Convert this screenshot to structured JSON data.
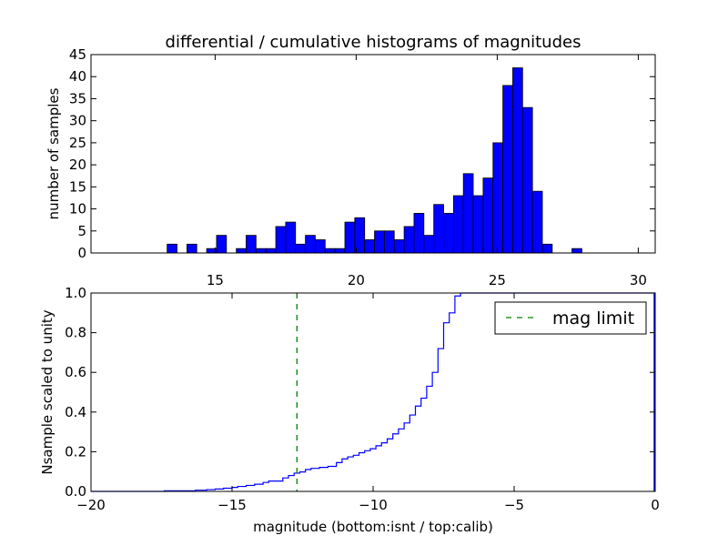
{
  "chart_data": [
    {
      "type": "bar",
      "title": "differential / cumulative histograms of magnitudes",
      "xlabel": "",
      "ylabel": "number of samples",
      "xlim": [
        10.6,
        30.6
      ],
      "ylim": [
        0,
        45
      ],
      "xticks": [
        15,
        20,
        25,
        30
      ],
      "yticks": [
        0,
        5,
        10,
        15,
        20,
        25,
        30,
        35,
        40,
        45
      ],
      "x_tick_position": "bottom, drawn below axes",
      "grid": false,
      "bar_color": "#0000ff",
      "bin_width": 0.35,
      "bins": [
        {
          "x": 13.3,
          "count": 2
        },
        {
          "x": 14.0,
          "count": 2
        },
        {
          "x": 14.7,
          "count": 1
        },
        {
          "x": 15.05,
          "count": 4
        },
        {
          "x": 15.75,
          "count": 1
        },
        {
          "x": 16.1,
          "count": 4
        },
        {
          "x": 16.45,
          "count": 1
        },
        {
          "x": 16.8,
          "count": 1
        },
        {
          "x": 17.15,
          "count": 6
        },
        {
          "x": 17.5,
          "count": 7
        },
        {
          "x": 17.85,
          "count": 2
        },
        {
          "x": 18.2,
          "count": 4
        },
        {
          "x": 18.55,
          "count": 3
        },
        {
          "x": 18.9,
          "count": 1
        },
        {
          "x": 19.25,
          "count": 1
        },
        {
          "x": 19.6,
          "count": 7
        },
        {
          "x": 19.95,
          "count": 8
        },
        {
          "x": 20.3,
          "count": 3
        },
        {
          "x": 20.65,
          "count": 5
        },
        {
          "x": 21.0,
          "count": 5
        },
        {
          "x": 21.35,
          "count": 3
        },
        {
          "x": 21.7,
          "count": 6
        },
        {
          "x": 22.05,
          "count": 9
        },
        {
          "x": 22.4,
          "count": 4
        },
        {
          "x": 22.75,
          "count": 11
        },
        {
          "x": 23.1,
          "count": 9
        },
        {
          "x": 23.45,
          "count": 13
        },
        {
          "x": 23.8,
          "count": 18
        },
        {
          "x": 24.15,
          "count": 13
        },
        {
          "x": 24.5,
          "count": 17
        },
        {
          "x": 24.85,
          "count": 25
        },
        {
          "x": 25.2,
          "count": 38
        },
        {
          "x": 25.55,
          "count": 42
        },
        {
          "x": 25.9,
          "count": 33
        },
        {
          "x": 26.25,
          "count": 14
        },
        {
          "x": 26.6,
          "count": 2
        },
        {
          "x": 27.65,
          "count": 1
        }
      ]
    },
    {
      "type": "line",
      "title": "",
      "xlabel": "magnitude (bottom:isnt / top:calib)",
      "ylabel": "Nsample scaled to unity",
      "xlim": [
        -20,
        0
      ],
      "ylim": [
        0,
        1.0
      ],
      "xticks": [
        -20,
        -15,
        -10,
        -5,
        0
      ],
      "xtick_labels": [
        "−20",
        "−15",
        "−10",
        "−5",
        "0"
      ],
      "yticks": [
        0.0,
        0.2,
        0.4,
        0.6,
        0.8,
        1.0
      ],
      "ytick_labels": [
        "0.0",
        "0.2",
        "0.4",
        "0.6",
        "0.8",
        "1.0"
      ],
      "grid": false,
      "legend": {
        "position": "top-right",
        "entries": [
          {
            "label": "mag limit",
            "style": "dashed",
            "color": "#008000"
          }
        ]
      },
      "series": [
        {
          "style": "step",
          "color": "#0000ff",
          "points": [
            [
              -20.0,
              0.0
            ],
            [
              -17.4,
              0.0
            ],
            [
              -17.4,
              0.003
            ],
            [
              -16.3,
              0.003
            ],
            [
              -16.3,
              0.006
            ],
            [
              -15.9,
              0.006
            ],
            [
              -15.9,
              0.009
            ],
            [
              -15.6,
              0.009
            ],
            [
              -15.6,
              0.012
            ],
            [
              -15.3,
              0.012
            ],
            [
              -15.3,
              0.016
            ],
            [
              -15.0,
              0.016
            ],
            [
              -15.0,
              0.02
            ],
            [
              -14.8,
              0.02
            ],
            [
              -14.8,
              0.025
            ],
            [
              -14.5,
              0.025
            ],
            [
              -14.5,
              0.03
            ],
            [
              -14.2,
              0.03
            ],
            [
              -14.2,
              0.036
            ],
            [
              -13.9,
              0.036
            ],
            [
              -13.9,
              0.045
            ],
            [
              -13.7,
              0.045
            ],
            [
              -13.7,
              0.052
            ],
            [
              -13.2,
              0.052
            ],
            [
              -13.2,
              0.068
            ],
            [
              -13.0,
              0.068
            ],
            [
              -13.0,
              0.08
            ],
            [
              -12.8,
              0.08
            ],
            [
              -12.8,
              0.092
            ],
            [
              -12.6,
              0.092
            ],
            [
              -12.6,
              0.098
            ],
            [
              -12.4,
              0.098
            ],
            [
              -12.4,
              0.11
            ],
            [
              -12.2,
              0.11
            ],
            [
              -12.2,
              0.116
            ],
            [
              -11.9,
              0.116
            ],
            [
              -11.9,
              0.121
            ],
            [
              -11.6,
              0.121
            ],
            [
              -11.6,
              0.126
            ],
            [
              -11.3,
              0.126
            ],
            [
              -11.3,
              0.145
            ],
            [
              -11.1,
              0.145
            ],
            [
              -11.1,
              0.164
            ],
            [
              -10.9,
              0.164
            ],
            [
              -10.9,
              0.174
            ],
            [
              -10.7,
              0.174
            ],
            [
              -10.7,
              0.182
            ],
            [
              -10.5,
              0.182
            ],
            [
              -10.5,
              0.195
            ],
            [
              -10.3,
              0.195
            ],
            [
              -10.3,
              0.205
            ],
            [
              -10.1,
              0.205
            ],
            [
              -10.1,
              0.215
            ],
            [
              -9.9,
              0.215
            ],
            [
              -9.9,
              0.23
            ],
            [
              -9.7,
              0.23
            ],
            [
              -9.7,
              0.245
            ],
            [
              -9.5,
              0.245
            ],
            [
              -9.5,
              0.265
            ],
            [
              -9.3,
              0.265
            ],
            [
              -9.3,
              0.29
            ],
            [
              -9.1,
              0.29
            ],
            [
              -9.1,
              0.315
            ],
            [
              -8.9,
              0.315
            ],
            [
              -8.9,
              0.345
            ],
            [
              -8.7,
              0.345
            ],
            [
              -8.7,
              0.385
            ],
            [
              -8.5,
              0.385
            ],
            [
              -8.5,
              0.43
            ],
            [
              -8.3,
              0.43
            ],
            [
              -8.3,
              0.47
            ],
            [
              -8.1,
              0.47
            ],
            [
              -8.1,
              0.53
            ],
            [
              -7.9,
              0.53
            ],
            [
              -7.9,
              0.6
            ],
            [
              -7.7,
              0.6
            ],
            [
              -7.7,
              0.72
            ],
            [
              -7.5,
              0.72
            ],
            [
              -7.5,
              0.85
            ],
            [
              -7.3,
              0.85
            ],
            [
              -7.3,
              0.9
            ],
            [
              -7.1,
              0.9
            ],
            [
              -7.1,
              0.985
            ],
            [
              -6.9,
              0.985
            ],
            [
              -6.9,
              1.0
            ],
            [
              0.0,
              1.0
            ]
          ]
        },
        {
          "name": "mag limit",
          "style": "vline-dashed",
          "color": "#008000",
          "x": -12.7
        }
      ]
    }
  ]
}
